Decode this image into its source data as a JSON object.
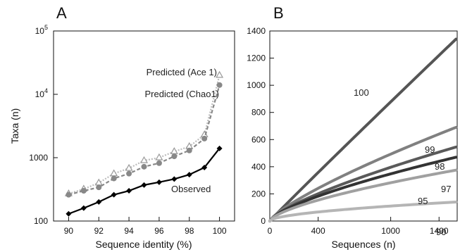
{
  "chart_data": [
    {
      "panel": "A",
      "type": "line",
      "xlabel": "Sequence identity (%)",
      "ylabel": "Taxa (n)",
      "xlim": [
        89,
        101
      ],
      "ylim": [
        100,
        100000
      ],
      "yscale": "log",
      "xticks": [
        "90",
        "92",
        "94",
        "96",
        "98",
        "100"
      ],
      "yticks": [
        {
          "base": "100",
          "exp": ""
        },
        {
          "base": "1000",
          "exp": ""
        },
        {
          "base": "10",
          "exp": "4"
        },
        {
          "base": "10",
          "exp": "5"
        }
      ],
      "x": [
        90,
        91,
        92,
        93,
        94,
        95,
        96,
        97,
        98,
        99,
        100
      ],
      "series": [
        {
          "name": "Observed",
          "color": "#000000",
          "marker": "diamond",
          "style": "solid",
          "values": [
            130,
            160,
            200,
            260,
            300,
            370,
            410,
            460,
            540,
            700,
            1400
          ]
        },
        {
          "name": "Predicted (Chao1)",
          "color": "#888888",
          "marker": "circle",
          "style": "dashed",
          "values": [
            260,
            300,
            340,
            470,
            560,
            720,
            820,
            1050,
            1300,
            2000,
            14000
          ]
        },
        {
          "name": "Predicted (Ace 1)",
          "color": "#bdbdbd",
          "marker": "triangle",
          "style": "dotted",
          "values": [
            270,
            320,
            400,
            560,
            680,
            900,
            1000,
            1250,
            1500,
            2300,
            20000
          ]
        }
      ]
    },
    {
      "panel": "B",
      "type": "line",
      "xlabel": "Sequences (n)",
      "ylabel": "",
      "xlim": [
        0,
        1550
      ],
      "ylim": [
        0,
        1400
      ],
      "xticks": [
        "0",
        "400",
        "1000",
        "1400"
      ],
      "yticks": [
        "0",
        "200",
        "400",
        "600",
        "800",
        "1000",
        "1200",
        "1400"
      ],
      "series": [
        {
          "name": "100",
          "color": "#555555",
          "final": 1340,
          "curve": 0.98
        },
        {
          "name": "99",
          "color": "#808080",
          "final": 690,
          "curve": 0.78
        },
        {
          "name": "98",
          "color": "#5a5a5a",
          "final": 545,
          "curve": 0.74
        },
        {
          "name": "97",
          "color": "#333333",
          "final": 470,
          "curve": 0.7
        },
        {
          "name": "95",
          "color": "#a0a0a0",
          "final": 375,
          "curve": 0.66
        },
        {
          "name": "90",
          "color": "#b5b5b5",
          "final": 140,
          "curve": 0.55
        }
      ]
    }
  ]
}
